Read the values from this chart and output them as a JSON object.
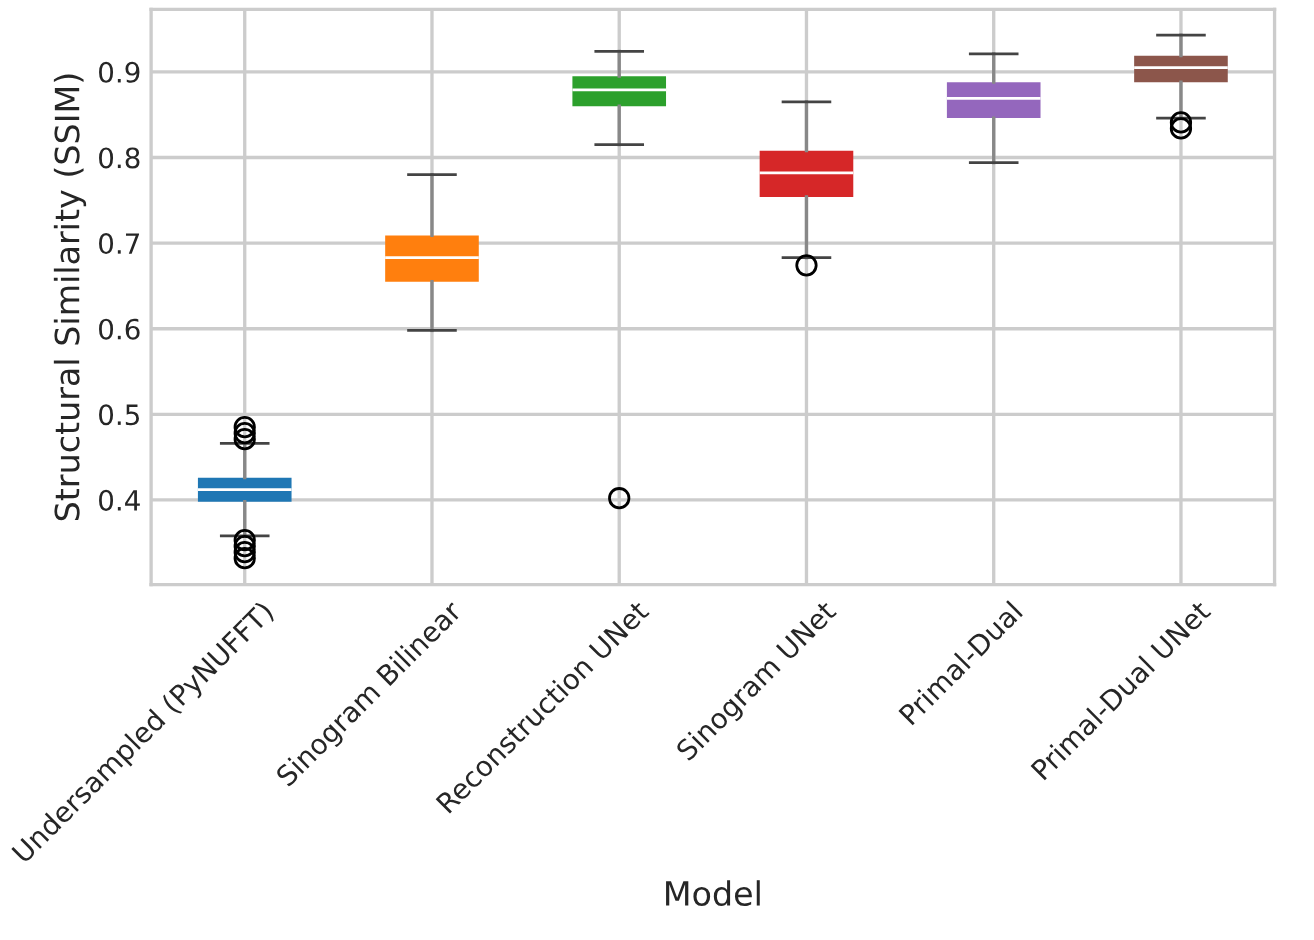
{
  "chart_data": {
    "type": "box",
    "xlabel": "Model",
    "ylabel": "Structural Similarity (SSIM)",
    "categories": [
      "Undersampled (PyNUFFT)",
      "Sinogram Bilinear",
      "Reconstruction UNet",
      "Sinogram UNet",
      "Primal-Dual",
      "Primal-Dual UNet"
    ],
    "colors": [
      "#1f77b4",
      "#ff7f0e",
      "#2ca02c",
      "#d62728",
      "#9467bd",
      "#8c564b"
    ],
    "boxes": [
      {
        "low": 0.358,
        "q1": 0.398,
        "median": 0.412,
        "q3": 0.426,
        "high": 0.466,
        "outliers": [
          0.485,
          0.478,
          0.471,
          0.353,
          0.346,
          0.339,
          0.332
        ]
      },
      {
        "low": 0.598,
        "q1": 0.655,
        "median": 0.683,
        "q3": 0.709,
        "high": 0.78
      },
      {
        "low": 0.815,
        "q1": 0.86,
        "median": 0.879,
        "q3": 0.895,
        "high": 0.924,
        "outliers": [
          0.402
        ]
      },
      {
        "low": 0.683,
        "q1": 0.754,
        "median": 0.782,
        "q3": 0.808,
        "high": 0.865,
        "outliers": [
          0.674
        ]
      },
      {
        "low": 0.794,
        "q1": 0.846,
        "median": 0.869,
        "q3": 0.888,
        "high": 0.921
      },
      {
        "low": 0.846,
        "q1": 0.888,
        "median": 0.905,
        "q3": 0.919,
        "high": 0.943,
        "outliers": [
          0.841,
          0.834
        ]
      }
    ],
    "ylim": [
      0.301,
      0.973
    ],
    "yticks": [
      0.4,
      0.5,
      0.6,
      0.7,
      0.8,
      0.9
    ],
    "grid": true
  }
}
